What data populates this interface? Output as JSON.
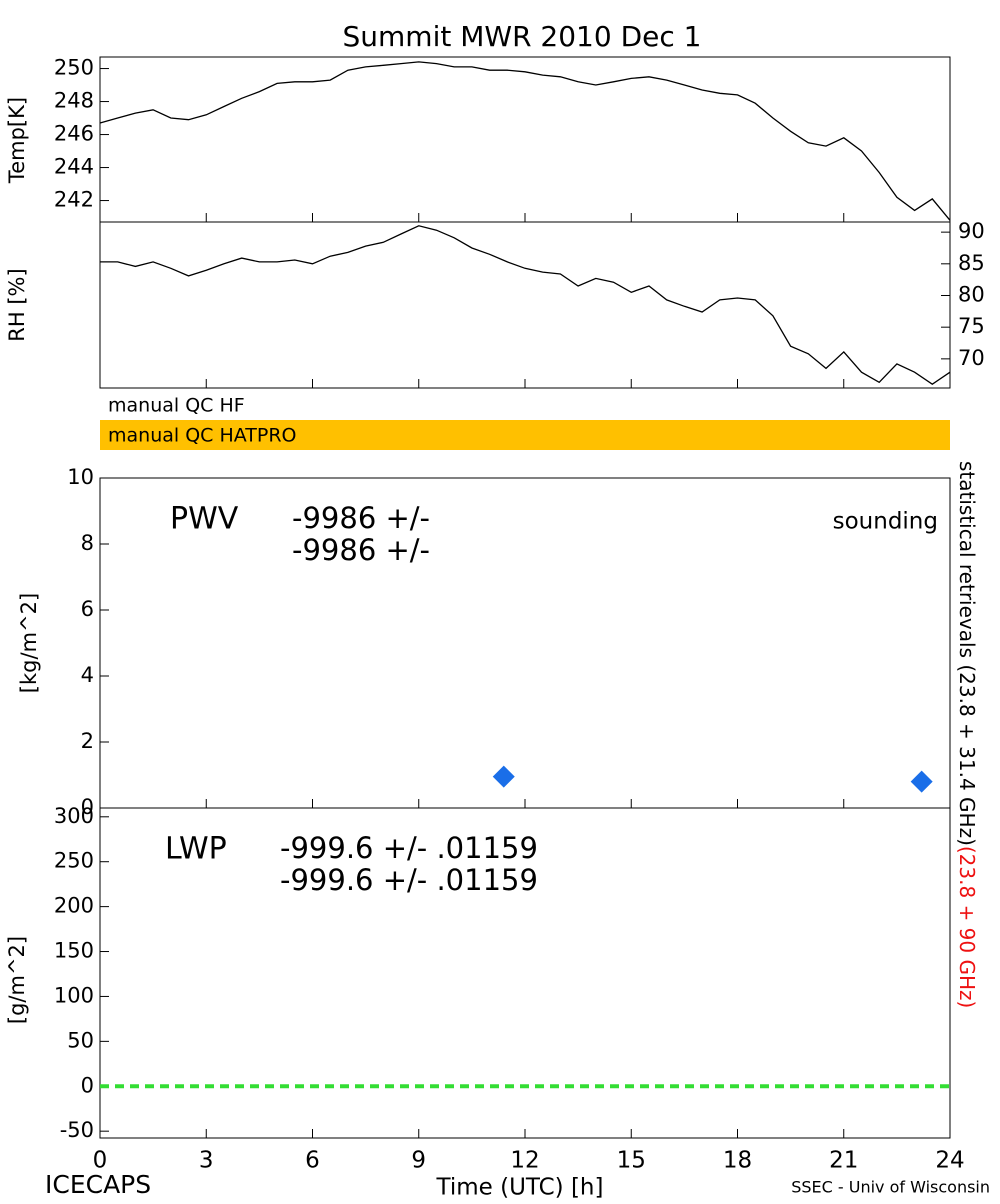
{
  "title": "Summit MWR 2010 Dec  1",
  "footer_left": "ICECAPS",
  "footer_right": "SSEC - Univ of Wisconsin",
  "qc_flags": [
    {
      "label": "manual QC HF",
      "color": "#ffffff"
    },
    {
      "label": "manual QC HATPRO",
      "color": "#ffc000"
    }
  ],
  "side_labels": [
    {
      "text": "statistical retrievals (23.8 + 31.4 GHz)",
      "color": "#000000"
    },
    {
      "text": "(23.8 + 90 GHz)",
      "color": "#ee1111"
    }
  ],
  "chart_data": [
    {
      "type": "line",
      "ylabel": "Temp[K]",
      "color": "#000000",
      "x": [
        0,
        0.5,
        1,
        1.5,
        2,
        2.5,
        3,
        3.5,
        4,
        4.5,
        5,
        5.5,
        6,
        6.5,
        7,
        7.5,
        8,
        8.5,
        9,
        9.5,
        10,
        10.5,
        11,
        11.5,
        12,
        12.5,
        13,
        13.5,
        14,
        14.5,
        15,
        15.5,
        16,
        16.5,
        17,
        17.5,
        18,
        18.5,
        19,
        19.5,
        20,
        20.5,
        21,
        21.5,
        22,
        22.5,
        23,
        23.5,
        24
      ],
      "values": [
        246.7,
        247.0,
        247.3,
        247.5,
        247.0,
        246.9,
        247.2,
        247.7,
        248.2,
        248.6,
        249.1,
        249.2,
        249.2,
        249.3,
        249.9,
        250.1,
        250.2,
        250.3,
        250.4,
        250.3,
        250.1,
        250.1,
        249.9,
        249.9,
        249.8,
        249.6,
        249.5,
        249.2,
        249.0,
        249.2,
        249.4,
        249.5,
        249.3,
        249.0,
        248.7,
        248.5,
        248.4,
        247.9,
        247.0,
        246.2,
        245.5,
        245.3,
        245.8,
        245.0,
        243.7,
        242.2,
        241.4,
        242.1,
        240.8
      ],
      "xlim": [
        0,
        24
      ],
      "ylim": [
        240.7,
        250.7
      ],
      "yticks": [
        242,
        244,
        246,
        248,
        250
      ],
      "y_axis_side": "left"
    },
    {
      "type": "line",
      "ylabel": "RH [%]",
      "color": "#000000",
      "x": [
        0,
        0.5,
        1,
        1.5,
        2,
        2.5,
        3,
        3.5,
        4,
        4.5,
        5,
        5.5,
        6,
        6.5,
        7,
        7.5,
        8,
        8.5,
        9,
        9.5,
        10,
        10.5,
        11,
        11.5,
        12,
        12.5,
        13,
        13.5,
        14,
        14.5,
        15,
        15.5,
        16,
        16.5,
        17,
        17.5,
        18,
        18.5,
        19,
        19.5,
        20,
        20.5,
        21,
        21.5,
        22,
        22.5,
        23,
        23.5,
        24
      ],
      "values": [
        85.3,
        85.3,
        84.6,
        85.3,
        84.3,
        83.1,
        84.0,
        85.0,
        85.9,
        85.3,
        85.3,
        85.6,
        85.0,
        86.2,
        86.8,
        87.8,
        88.4,
        89.7,
        91.0,
        90.3,
        89.1,
        87.5,
        86.5,
        85.3,
        84.3,
        83.7,
        83.4,
        81.5,
        82.7,
        82.1,
        80.5,
        81.5,
        79.3,
        78.3,
        77.4,
        79.3,
        79.6,
        79.3,
        76.8,
        72.0,
        70.8,
        68.5,
        71.1,
        67.9,
        66.3,
        69.2,
        67.9,
        66.0,
        67.9
      ],
      "xlim": [
        0,
        24
      ],
      "ylim": [
        65.4,
        91.6
      ],
      "yticks": [
        70,
        75,
        80,
        85,
        90
      ],
      "y_axis_side": "right"
    },
    {
      "type": "scatter",
      "ylabel": "[kg/m^2]",
      "label": "PWV",
      "annotations": [
        {
          "text": "-9986 +/-",
          "color": "#000000"
        },
        {
          "text": "-9986 +/-",
          "color": "#ee1111"
        }
      ],
      "series": [
        {
          "name": "sounding",
          "color": "#1a6ee8",
          "marker": "diamond",
          "x": [
            11.4,
            23.2
          ],
          "values": [
            0.95,
            0.8
          ]
        }
      ],
      "legend": "upper right",
      "xlim": [
        0,
        24
      ],
      "ylim": [
        0,
        10
      ],
      "yticks": [
        0,
        2,
        4,
        6,
        8,
        10
      ],
      "y_axis_side": "left"
    },
    {
      "type": "line",
      "ylabel": "[g/m^2]",
      "label": "LWP",
      "annotations": [
        {
          "text": "-999.6 +/- .01159",
          "color": "#000000"
        },
        {
          "text": "-999.6 +/- .01159",
          "color": "#ee1111"
        }
      ],
      "reference_line": {
        "value": 0,
        "color": "#33dd33",
        "style": "dashed"
      },
      "xlim": [
        0,
        24
      ],
      "ylim": [
        -57.6,
        309.8
      ],
      "yticks": [
        -50,
        0,
        50,
        100,
        150,
        200,
        250,
        300
      ],
      "y_axis_side": "left",
      "xticks": [
        0,
        3,
        6,
        9,
        12,
        15,
        18,
        21,
        24
      ],
      "xlabel": "Time (UTC) [h]"
    }
  ]
}
